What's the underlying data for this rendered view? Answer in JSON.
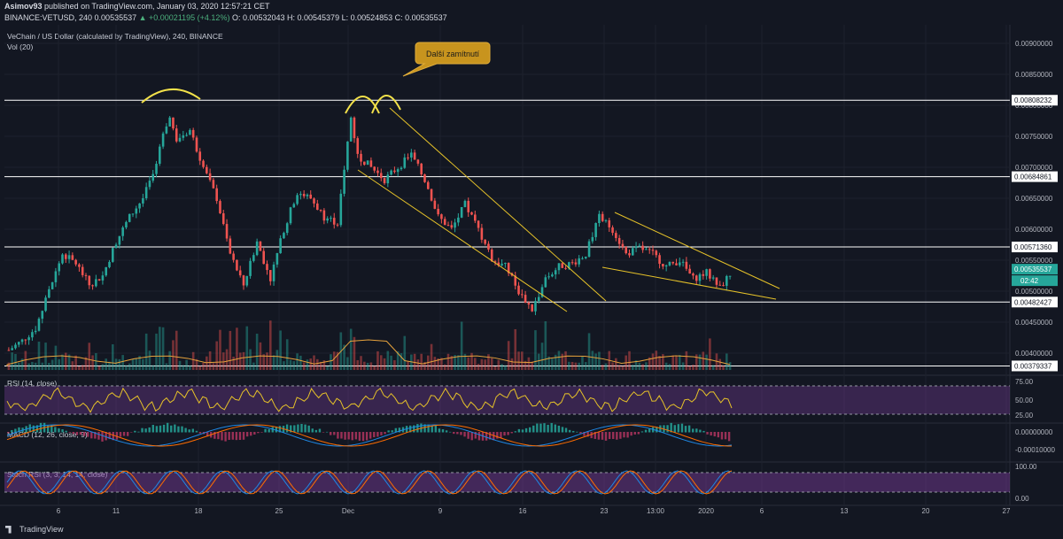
{
  "header": {
    "author": "Asimov93",
    "published": "published on TradingView.com, January 03, 2020 12:57:21 CET",
    "ticker": "BINANCE:VETUSD, 240",
    "last": "0.00535537",
    "change": "▲ +0.00021195 (+4.12%)",
    "ohlc": "O: 0.00532043  H: 0.00545379  L: 0.00524853  C: 0.00535537"
  },
  "chart_title": "VeChain / US Dollar (calculated by TradingView), 240, BINANCE",
  "vol_label": "Vol (20)",
  "annotation": "Další zamítnutí",
  "rsi_label": "RSI (14, close)",
  "macd_label": "MACD (12, 26, close, 9)",
  "stoch_label": "Stoch RSI (3, 3, 14, 14, close)",
  "brand": "TradingView",
  "countdown": "02:42",
  "colors": {
    "bg": "#131722",
    "up": "#26a69a",
    "down": "#ef5350",
    "hline": "#ffffff",
    "trend": "#e6c229",
    "rsi": "#e6c229",
    "band": "#7e3fa0",
    "macd": "#1e88e5",
    "signal": "#ff6d00"
  },
  "chart_data": {
    "type": "candlestick",
    "ylim": [
      0.0037,
      0.0093
    ],
    "price_ticks": [
      "0.00900000",
      "0.00850000",
      "0.00800000",
      "0.00750000",
      "0.00700000",
      "0.00650000",
      "0.00600000",
      "0.00550000",
      "0.00500000",
      "0.00450000",
      "0.00400000"
    ],
    "hlines": [
      "0.00808232",
      "0.00684861",
      "0.00571360",
      "0.00482427",
      "0.00379337"
    ],
    "current_price": "0.00535537",
    "x_ticks": [
      "6",
      "11",
      "18",
      "25",
      "Dec",
      "9",
      "16",
      "23",
      "13:00",
      "2020",
      "6",
      "13",
      "20",
      "27"
    ],
    "rsi": {
      "ticks": [
        "75.00",
        "50.00",
        "25.00"
      ],
      "bands": [
        70,
        30
      ]
    },
    "macd": {
      "ticks": [
        "0.00000000",
        "-0.00010000"
      ]
    },
    "stoch_rsi": {
      "ticks": [
        "100.00",
        "0.00"
      ],
      "bands": [
        80,
        20
      ]
    },
    "swing_points": [
      {
        "t": 0,
        "p": 0.00405
      },
      {
        "t": 4,
        "p": 0.0042
      },
      {
        "t": 8,
        "p": 0.0044
      },
      {
        "t": 12,
        "p": 0.005
      },
      {
        "t": 16,
        "p": 0.0056
      },
      {
        "t": 20,
        "p": 0.00545
      },
      {
        "t": 24,
        "p": 0.0051
      },
      {
        "t": 28,
        "p": 0.00525
      },
      {
        "t": 32,
        "p": 0.0058
      },
      {
        "t": 36,
        "p": 0.0062
      },
      {
        "t": 40,
        "p": 0.0065
      },
      {
        "t": 44,
        "p": 0.007
      },
      {
        "t": 46,
        "p": 0.0076
      },
      {
        "t": 48,
        "p": 0.0078
      },
      {
        "t": 50,
        "p": 0.00745
      },
      {
        "t": 54,
        "p": 0.0076
      },
      {
        "t": 58,
        "p": 0.007
      },
      {
        "t": 62,
        "p": 0.0065
      },
      {
        "t": 66,
        "p": 0.0056
      },
      {
        "t": 70,
        "p": 0.0051
      },
      {
        "t": 74,
        "p": 0.0058
      },
      {
        "t": 78,
        "p": 0.0052
      },
      {
        "t": 82,
        "p": 0.006
      },
      {
        "t": 86,
        "p": 0.0066
      },
      {
        "t": 90,
        "p": 0.0065
      },
      {
        "t": 94,
        "p": 0.0062
      },
      {
        "t": 98,
        "p": 0.0061
      },
      {
        "t": 100,
        "p": 0.007
      },
      {
        "t": 102,
        "p": 0.0078
      },
      {
        "t": 104,
        "p": 0.0072
      },
      {
        "t": 108,
        "p": 0.007
      },
      {
        "t": 112,
        "p": 0.0068
      },
      {
        "t": 116,
        "p": 0.007
      },
      {
        "t": 120,
        "p": 0.0072
      },
      {
        "t": 124,
        "p": 0.0068
      },
      {
        "t": 128,
        "p": 0.0062
      },
      {
        "t": 132,
        "p": 0.006
      },
      {
        "t": 136,
        "p": 0.0064
      },
      {
        "t": 140,
        "p": 0.006
      },
      {
        "t": 144,
        "p": 0.0055
      },
      {
        "t": 148,
        "p": 0.0054
      },
      {
        "t": 152,
        "p": 0.005
      },
      {
        "t": 156,
        "p": 0.0047
      },
      {
        "t": 160,
        "p": 0.0052
      },
      {
        "t": 164,
        "p": 0.0054
      },
      {
        "t": 168,
        "p": 0.00545
      },
      {
        "t": 172,
        "p": 0.0056
      },
      {
        "t": 176,
        "p": 0.0062
      },
      {
        "t": 180,
        "p": 0.006
      },
      {
        "t": 184,
        "p": 0.0056
      },
      {
        "t": 188,
        "p": 0.0057
      },
      {
        "t": 192,
        "p": 0.0056
      },
      {
        "t": 196,
        "p": 0.0054
      },
      {
        "t": 200,
        "p": 0.0055
      },
      {
        "t": 204,
        "p": 0.0052
      },
      {
        "t": 208,
        "p": 0.0053
      },
      {
        "t": 212,
        "p": 0.00505
      },
      {
        "t": 216,
        "p": 0.00536
      }
    ]
  }
}
